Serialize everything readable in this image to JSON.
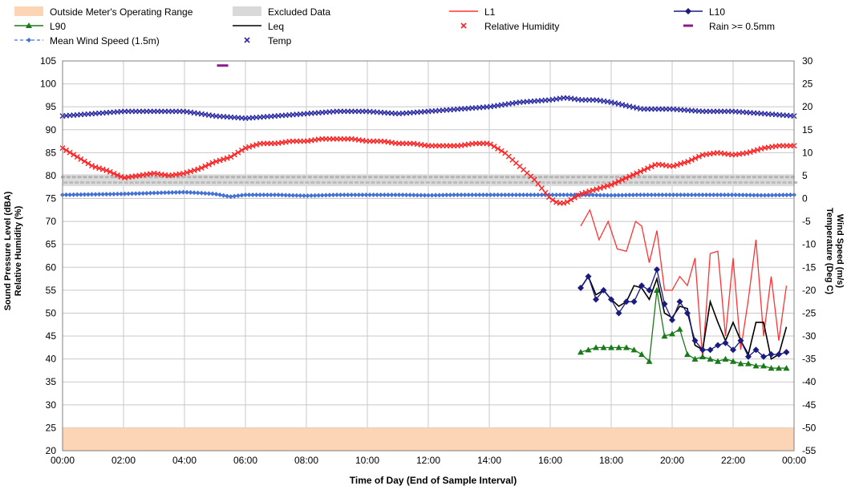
{
  "chart_data": {
    "type": "line",
    "xlabel": "Time of Day (End of Sample Interval)",
    "ylabel_left": [
      "Sound Pressure Level (dBA)",
      "Relative Humidity (%)"
    ],
    "ylabel_right": [
      "Wind Speed (m/s)",
      "Temperature (Deg C)"
    ],
    "ylim_left": [
      20,
      105
    ],
    "ylim_right": [
      -55,
      30
    ],
    "xlim_hours": [
      0,
      24
    ],
    "x_ticks": [
      "00:00",
      "02:00",
      "04:00",
      "06:00",
      "08:00",
      "10:00",
      "12:00",
      "14:00",
      "16:00",
      "18:00",
      "20:00",
      "22:00",
      "00:00"
    ],
    "y_ticks_left": [
      20,
      25,
      30,
      35,
      40,
      45,
      50,
      55,
      60,
      65,
      70,
      75,
      80,
      85,
      90,
      95,
      100,
      105
    ],
    "y_ticks_right": [
      -55,
      -50,
      -45,
      -40,
      -35,
      -30,
      -25,
      -20,
      -15,
      -10,
      -5,
      0,
      5,
      10,
      15,
      20,
      25,
      30
    ],
    "grid": true,
    "legend": [
      {
        "label": "Outside Meter's Operating Range",
        "color": "#fbd5b5",
        "kind": "band"
      },
      {
        "label": "Excluded Data",
        "color": "#d9d9d9",
        "kind": "band"
      },
      {
        "label": "L1",
        "color": "#ff3333",
        "kind": "line"
      },
      {
        "label": "L10",
        "color": "#1a1a80",
        "kind": "diamond"
      },
      {
        "label": "L90",
        "color": "#1a7a1a",
        "kind": "triangle"
      },
      {
        "label": "Leq",
        "color": "#000000",
        "kind": "line"
      },
      {
        "label": "Relative Humidity",
        "color": "#ff2222",
        "kind": "xmark"
      },
      {
        "label": "Rain >= 0.5mm",
        "color": "#8b1a8b",
        "kind": "dash"
      },
      {
        "label": "Mean Wind Speed (1.5m)",
        "color": "#4472d4",
        "kind": "dashdiamond"
      },
      {
        "label": "Temp",
        "color": "#2b2ba6",
        "kind": "xmark"
      }
    ],
    "operating_range_band": [
      20,
      25
    ],
    "rain": [
      {
        "x": 5.25,
        "y": 29
      }
    ],
    "series": {
      "L1": {
        "x": [
          17.0,
          17.3,
          17.6,
          17.9,
          18.2,
          18.5,
          18.8,
          19.0,
          19.25,
          19.5,
          19.75,
          20.0,
          20.25,
          20.5,
          20.75,
          21.0,
          21.25,
          21.5,
          21.75,
          22.0,
          22.25,
          22.5,
          22.75,
          23.0,
          23.25,
          23.5,
          23.75
        ],
        "y": [
          69,
          72.5,
          66,
          70,
          64,
          63.5,
          70,
          69,
          61,
          68,
          55,
          55,
          58,
          56,
          62,
          40,
          63,
          63.5,
          45,
          62,
          42,
          53,
          66,
          45,
          58,
          44,
          56
        ]
      },
      "L10": {
        "x": [
          17.0,
          17.25,
          17.5,
          17.75,
          18.0,
          18.25,
          18.5,
          18.75,
          19.0,
          19.25,
          19.5,
          19.75,
          20.0,
          20.25,
          20.5,
          20.75,
          21.0,
          21.25,
          21.5,
          21.75,
          22.0,
          22.25,
          22.5,
          22.75,
          23.0,
          23.25,
          23.5,
          23.75
        ],
        "y": [
          55.5,
          58,
          53,
          55,
          53,
          50,
          52.5,
          52.5,
          56,
          55,
          59.5,
          52,
          48.5,
          52.5,
          50,
          44,
          42,
          42,
          43,
          43.5,
          42,
          44,
          40.5,
          42,
          40.5,
          41,
          41,
          41.5
        ]
      },
      "L90": {
        "x": [
          17.0,
          17.25,
          17.5,
          17.75,
          18.0,
          18.25,
          18.5,
          18.75,
          19.0,
          19.25,
          19.5,
          19.75,
          20.0,
          20.25,
          20.5,
          20.75,
          21.0,
          21.25,
          21.5,
          21.75,
          22.0,
          22.25,
          22.5,
          22.75,
          23.0,
          23.25,
          23.5,
          23.75
        ],
        "y": [
          41.5,
          42,
          42.5,
          42.5,
          42.5,
          42.5,
          42.5,
          42,
          41,
          39.5,
          55,
          45,
          45.5,
          46.5,
          41,
          40,
          40.5,
          40,
          39.5,
          40,
          39.5,
          39,
          39,
          38.5,
          38.5,
          38,
          38,
          38
        ]
      },
      "Leq": {
        "x": [
          17.0,
          17.25,
          17.5,
          17.75,
          18.0,
          18.25,
          18.5,
          18.75,
          19.0,
          19.25,
          19.5,
          19.75,
          20.0,
          20.25,
          20.5,
          20.75,
          21.0,
          21.25,
          21.5,
          21.75,
          22.0,
          22.25,
          22.5,
          22.75,
          23.0,
          23.25,
          23.5,
          23.75
        ],
        "y": [
          55.5,
          58,
          54,
          55,
          53,
          51.5,
          52.5,
          56,
          55.5,
          53,
          57.5,
          50,
          49,
          51.5,
          51,
          43,
          42,
          52.5,
          48,
          44,
          48,
          44,
          41,
          48,
          48,
          40,
          41,
          47
        ]
      },
      "Relative Humidity": {
        "x": [
          0,
          0.5,
          1,
          1.5,
          2,
          2.5,
          3,
          3.5,
          4,
          4.5,
          5,
          5.5,
          6,
          6.5,
          7,
          7.5,
          8,
          8.5,
          9,
          9.5,
          10,
          10.5,
          11,
          11.5,
          12,
          12.5,
          13,
          13.5,
          14,
          14.5,
          15,
          15.5,
          16,
          16.25,
          16.5,
          16.75,
          17,
          17.5,
          18,
          18.5,
          19,
          19.5,
          20,
          20.5,
          21,
          21.5,
          22,
          22.5,
          23,
          23.5,
          24
        ],
        "y": [
          86,
          84,
          82,
          81,
          79.5,
          80,
          80.5,
          80,
          80.5,
          81.5,
          83,
          84,
          86,
          87,
          87,
          87.5,
          87.5,
          88,
          88,
          88,
          87.5,
          87.5,
          87,
          87,
          86.5,
          86.5,
          86.5,
          87,
          87,
          85,
          82,
          79,
          75,
          74,
          74,
          75,
          76,
          77,
          78,
          79.5,
          81,
          82.5,
          82,
          83,
          84.5,
          85,
          84.5,
          85,
          86,
          86.5,
          86.5
        ]
      },
      "Mean Wind Speed (1.5m)": {
        "x": [
          0,
          1,
          2,
          3,
          4,
          5,
          5.5,
          6,
          7,
          8,
          9,
          10,
          11,
          12,
          13,
          14,
          15,
          16,
          17,
          18,
          19,
          20,
          21,
          22,
          23,
          24
        ],
        "y": [
          0.8,
          0.9,
          1.0,
          1.2,
          1.4,
          1.0,
          0.4,
          0.8,
          0.8,
          0.6,
          0.8,
          0.8,
          0.8,
          0.7,
          0.8,
          0.8,
          0.8,
          0.8,
          0.8,
          0.7,
          0.8,
          0.8,
          0.8,
          0.8,
          0.7,
          0.8
        ]
      },
      "Temp": {
        "x": [
          0,
          1,
          2,
          3,
          4,
          5,
          6,
          7,
          8,
          9,
          10,
          11,
          12,
          13,
          14,
          15,
          16,
          16.5,
          17,
          17.5,
          18,
          19,
          20,
          21,
          22,
          23,
          24
        ],
        "y": [
          18,
          18.5,
          19,
          19,
          19,
          18,
          17.5,
          18,
          18.5,
          19,
          19,
          18.5,
          19,
          19.5,
          20,
          21,
          21.5,
          22,
          21.5,
          21.5,
          21,
          19.5,
          19.5,
          19,
          19,
          18.5,
          18
        ]
      },
      "Excluded Data": {
        "x": [
          0,
          24
        ],
        "y": [
          79,
          79
        ]
      }
    }
  }
}
